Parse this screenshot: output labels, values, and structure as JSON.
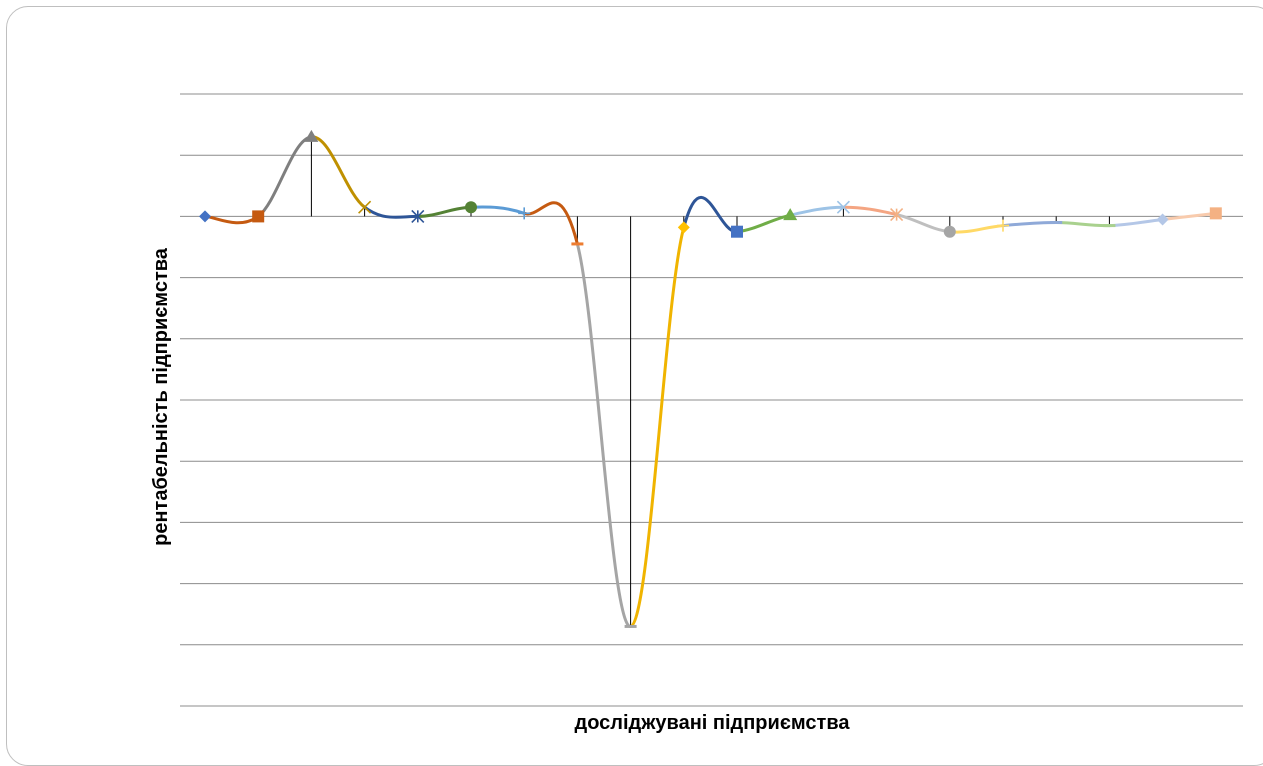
{
  "chart_data": {
    "type": "line",
    "xlabel": "досліджувані підприємства",
    "ylabel": "рентабельність підприємства",
    "ylim": [
      -8,
      2
    ],
    "grid": true,
    "legend": "none",
    "smooth": true,
    "x_count": 20,
    "values": [
      0.0,
      0.0,
      1.3,
      0.15,
      0.0,
      0.15,
      0.05,
      -0.45,
      -6.7,
      -0.18,
      -0.25,
      0.02,
      0.15,
      0.03,
      -0.25,
      -0.15,
      -0.1,
      -0.15,
      -0.05,
      0.05
    ],
    "segment_colors": [
      "#c55a11",
      "#7f7f7f",
      "#bf9000",
      "#2e5597",
      "#548235",
      "#5b9bd5",
      "#c55a11",
      "#a5a5a5",
      "#f0b400",
      "#2e5597",
      "#70ad47",
      "#9dc3e6",
      "#f4a582",
      "#bfbfbf",
      "#ffd966",
      "#8fa9d8",
      "#a9d18e",
      "#b4c7e7",
      "#f8cbad"
    ],
    "marker_shapes": [
      "diamond",
      "square",
      "triangle",
      "x",
      "star",
      "circle",
      "plus",
      "dash",
      "dash",
      "diamond",
      "square",
      "triangle",
      "x",
      "star",
      "circle",
      "plus",
      "dash",
      "dash",
      "diamond",
      "square"
    ],
    "marker_colors": [
      "#4472c4",
      "#c55a11",
      "#7f7f7f",
      "#bf9000",
      "#2e5597",
      "#548235",
      "#5b9bd5",
      "#ed7d31",
      "#a5a5a5",
      "#ffc000",
      "#4472c4",
      "#70ad47",
      "#9dc3e6",
      "#f4b183",
      "#a5a5a5",
      "#ffd966",
      "#8fa9d8",
      "#a9d18e",
      "#b4c7e7",
      "#f4b183"
    ],
    "drop_lines": true
  }
}
